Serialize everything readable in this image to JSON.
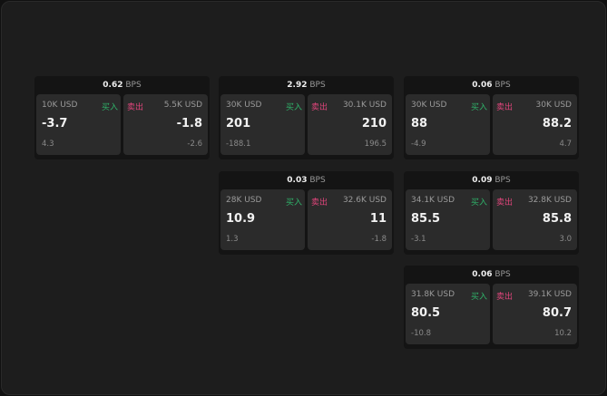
{
  "unit": "BPS",
  "buy_label": "买入",
  "sell_label": "卖出",
  "colors": {
    "buy": "#2fb36a",
    "sell": "#e0457b"
  },
  "groups": [
    {
      "spread": "0.62",
      "bid": {
        "qty": "10K USD",
        "price": "-3.7",
        "change": "4.3"
      },
      "ask": {
        "qty": "5.5K USD",
        "price": "-1.8",
        "change": "-2.6"
      }
    },
    {
      "spread": "2.92",
      "bid": {
        "qty": "30K USD",
        "price": "201",
        "change": "-188.1"
      },
      "ask": {
        "qty": "30.1K USD",
        "price": "210",
        "change": "196.5"
      }
    },
    {
      "spread": "0.06",
      "bid": {
        "qty": "30K USD",
        "price": "88",
        "change": "-4.9"
      },
      "ask": {
        "qty": "30K USD",
        "price": "88.2",
        "change": "4.7"
      }
    },
    {
      "spread": "0.03",
      "bid": {
        "qty": "28K USD",
        "price": "10.9",
        "change": "1.3"
      },
      "ask": {
        "qty": "32.6K USD",
        "price": "11",
        "change": "-1.8"
      }
    },
    {
      "spread": "0.09",
      "bid": {
        "qty": "34.1K USD",
        "price": "85.5",
        "change": "-3.1"
      },
      "ask": {
        "qty": "32.8K USD",
        "price": "85.8",
        "change": "3.0"
      }
    },
    {
      "spread": "0.06",
      "bid": {
        "qty": "31.8K USD",
        "price": "80.5",
        "change": "-10.8"
      },
      "ask": {
        "qty": "39.1K USD",
        "price": "80.7",
        "change": "10.2"
      }
    }
  ]
}
